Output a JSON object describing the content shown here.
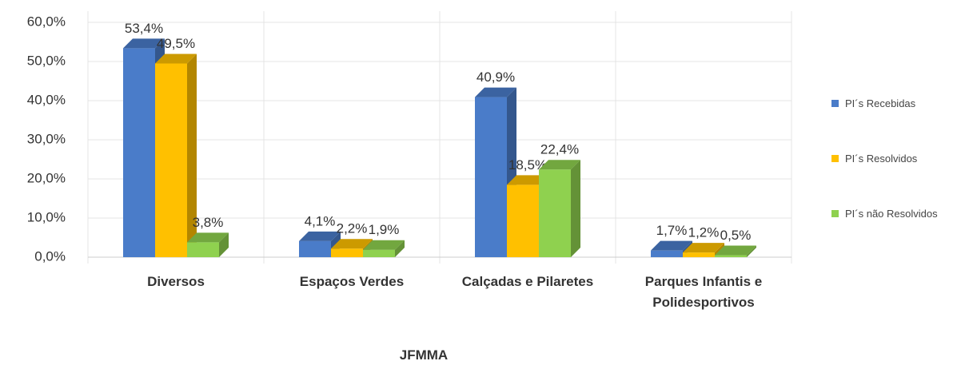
{
  "chart_data": {
    "type": "bar3d",
    "categories": [
      "Diversos",
      "Espaços Verdes",
      "Calçadas e Pilaretes",
      "Parques Infantis e Polidesportivos"
    ],
    "series": [
      {
        "name": "PI´s Recebidas",
        "color": "#4a7cc9",
        "values": [
          53.4,
          4.1,
          40.9,
          1.7
        ],
        "value_labels": [
          "53,4%",
          "4,1%",
          "40,9%",
          "1,7%"
        ]
      },
      {
        "name": "PI´s Resolvidos",
        "color": "#ffc000",
        "values": [
          49.5,
          2.2,
          18.5,
          1.2
        ],
        "value_labels": [
          "49,5%",
          "2,2%",
          "18,5%",
          "1,2%"
        ]
      },
      {
        "name": "PI´s não Resolvidos",
        "color": "#8fd14f",
        "values": [
          3.8,
          1.9,
          22.4,
          0.5
        ],
        "value_labels": [
          "3,8%",
          "1,9%",
          "22,4%",
          "0,5%"
        ]
      }
    ],
    "xlabel": "JFMMA",
    "ylim": [
      0,
      60
    ],
    "yticks": [
      {
        "value": 0,
        "label": "0,0%"
      },
      {
        "value": 10,
        "label": "10,0%"
      },
      {
        "value": 20,
        "label": "20,0%"
      },
      {
        "value": 30,
        "label": "30,0%"
      },
      {
        "value": 40,
        "label": "40,0%"
      },
      {
        "value": 50,
        "label": "50,0%"
      },
      {
        "value": 60,
        "label": "60,0%"
      }
    ],
    "grid": true,
    "legend": "right"
  }
}
